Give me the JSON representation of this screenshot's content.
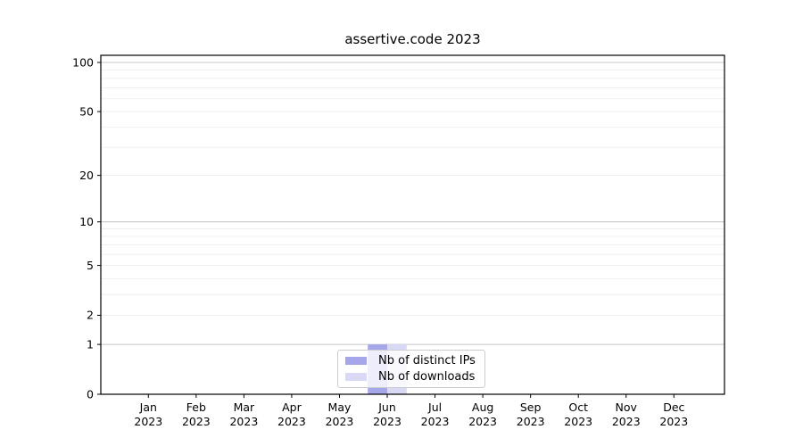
{
  "window": {
    "background": "#ffffff"
  },
  "chart_data": {
    "type": "bar",
    "title": "assertive.code 2023",
    "categories": [
      "Jan",
      "Feb",
      "Mar",
      "Apr",
      "May",
      "Jun",
      "Jul",
      "Aug",
      "Sep",
      "Oct",
      "Nov",
      "Dec"
    ],
    "category_year": "2023",
    "series": [
      {
        "name": "Nb of distinct IPs",
        "color": "#a6a6ea",
        "values": [
          0,
          0,
          0,
          0,
          0,
          1,
          0,
          0,
          0,
          0,
          0,
          0
        ]
      },
      {
        "name": "Nb of downloads",
        "color": "#d9d9f6",
        "values": [
          0,
          0,
          0,
          0,
          0,
          1,
          0,
          0,
          0,
          0,
          0,
          0
        ]
      }
    ],
    "yscale": "log1p",
    "ylim": [
      0,
      112
    ],
    "yticks": [
      0,
      1,
      2,
      5,
      10,
      20,
      50,
      100
    ],
    "major_gridlines": [
      1,
      10,
      100
    ],
    "minor_gridlines": [
      2,
      3,
      4,
      5,
      6,
      7,
      8,
      9,
      20,
      30,
      40,
      50,
      60,
      70,
      80,
      90
    ],
    "grid": "horizontal",
    "legend_position": "bottom-center",
    "colors": {
      "major_grid": "#c8c8c8",
      "minor_grid": "#ededed",
      "spine": "#000000",
      "text": "#000000"
    }
  }
}
